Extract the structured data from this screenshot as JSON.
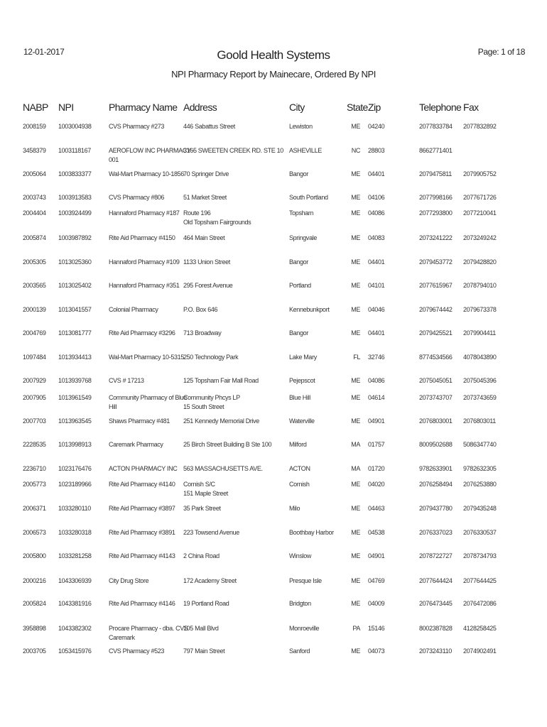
{
  "header": {
    "date": "12-01-2017",
    "title": "Goold Health Systems",
    "page": "Page: 1 of 18",
    "subtitle": "NPI Pharmacy Report by Mainecare, Ordered By NPI"
  },
  "columns": [
    "NABP",
    "NPI",
    "Pharmacy Name",
    "Address",
    "City",
    "State",
    "Zip",
    "Telephone",
    "Fax"
  ],
  "rows": [
    {
      "nabp": "2008159",
      "npi": "1003004938",
      "name": [
        "CVS Pharmacy #273"
      ],
      "address": [
        "446 Sabattus Street"
      ],
      "city": "Lewiston",
      "state": "ME",
      "zip": "04240",
      "telephone": "2077833784",
      "fax": "2077832892"
    },
    {
      "nabp": "3458379",
      "npi": "1003118167",
      "name": [
        "AEROFLOW INC PHARMACY -",
        "001"
      ],
      "address": [
        "3165 SWEETEN CREEK RD. STE 10"
      ],
      "city": "ASHEVILLE",
      "state": "NC",
      "zip": "28803",
      "telephone": "8662771401",
      "fax": ""
    },
    {
      "nabp": "2005064",
      "npi": "1003833377",
      "name": [
        "Wal-Mart Pharmacy 10-1856"
      ],
      "address": [
        "70 Springer Drive"
      ],
      "city": "Bangor",
      "state": "ME",
      "zip": "04401",
      "telephone": "2079475811",
      "fax": "2079905752"
    },
    {
      "nabp": "2003743",
      "npi": "1003913583",
      "name": [
        "CVS Pharmacy #806"
      ],
      "address": [
        "51 Market Street"
      ],
      "city": "South Portland",
      "state": "ME",
      "zip": "04106",
      "telephone": "2077998166",
      "fax": "2077671726"
    },
    {
      "nabp": "2004404",
      "npi": "1003924499",
      "name": [
        "Hannaford Pharmacy #187"
      ],
      "address": [
        "Route 196",
        "Old Topsham Fairgrounds"
      ],
      "city": "Topsham",
      "state": "ME",
      "zip": "04086",
      "telephone": "2077293800",
      "fax": "2077210041"
    },
    {
      "nabp": "2005874",
      "npi": "1003987892",
      "name": [
        "Rite Aid Pharmacy #4150"
      ],
      "address": [
        "464 Main Street"
      ],
      "city": "Springvale",
      "state": "ME",
      "zip": "04083",
      "telephone": "2073241222",
      "fax": "2073249242"
    },
    {
      "nabp": "2005305",
      "npi": "1013025360",
      "name": [
        "Hannaford Pharmacy #109"
      ],
      "address": [
        "1133 Union Street"
      ],
      "city": "Bangor",
      "state": "ME",
      "zip": "04401",
      "telephone": "2079453772",
      "fax": "2079428820"
    },
    {
      "nabp": "2003565",
      "npi": "1013025402",
      "name": [
        "Hannaford Pharmacy #351"
      ],
      "address": [
        "295 Forest Avenue"
      ],
      "city": "Portland",
      "state": "ME",
      "zip": "04101",
      "telephone": "2077615967",
      "fax": "2078794010"
    },
    {
      "nabp": "2000139",
      "npi": "1013041557",
      "name": [
        "Colonial Pharmacy"
      ],
      "address": [
        "P.O. Box 646"
      ],
      "city": "Kennebunkport",
      "state": "ME",
      "zip": "04046",
      "telephone": "2079674442",
      "fax": "2079673378"
    },
    {
      "nabp": "2004769",
      "npi": "1013081777",
      "name": [
        "Rite Aid Pharmacy #3296"
      ],
      "address": [
        "713 Broadway"
      ],
      "city": "Bangor",
      "state": "ME",
      "zip": "04401",
      "telephone": "2079425521",
      "fax": "2079904411"
    },
    {
      "nabp": "1097484",
      "npi": "1013934413",
      "name": [
        "Wal-Mart Pharmacy 10-5315"
      ],
      "address": [
        "250 Technology Park"
      ],
      "city": "Lake Mary",
      "state": "FL",
      "zip": "32746",
      "telephone": "8774534566",
      "fax": "4078043890"
    },
    {
      "nabp": "2007929",
      "npi": "1013939768",
      "name": [
        "CVS # 17213"
      ],
      "address": [
        "125 Topsham Fair Mall Road"
      ],
      "city": "Pejepscot",
      "state": "ME",
      "zip": "04086",
      "telephone": "2075045051",
      "fax": "2075045396"
    },
    {
      "nabp": "2007905",
      "npi": "1013961549",
      "name": [
        "Community Pharmacy of Blue",
        "Hill"
      ],
      "address": [
        "Community Phcys LP",
        "15 South Street"
      ],
      "city": "Blue Hill",
      "state": "ME",
      "zip": "04614",
      "telephone": "2073743707",
      "fax": "2073743659"
    },
    {
      "nabp": "2007703",
      "npi": "1013963545",
      "name": [
        "Shaws Pharmacy #481"
      ],
      "address": [
        "251 Kennedy Memorial Drive"
      ],
      "city": "Waterville",
      "state": "ME",
      "zip": "04901",
      "telephone": "2076803001",
      "fax": "2076803011"
    },
    {
      "nabp": "2228535",
      "npi": "1013998913",
      "name": [
        "Caremark Pharmacy"
      ],
      "address": [
        "25 Birch Street Building B Ste 100"
      ],
      "city": "Milford",
      "state": "MA",
      "zip": "01757",
      "telephone": "8009502688",
      "fax": "5086347740"
    },
    {
      "nabp": "2236710",
      "npi": "1023176476",
      "name": [
        "ACTON PHARMACY INC"
      ],
      "address": [
        "563 MASSACHUSETTS AVE."
      ],
      "city": "ACTON",
      "state": "MA",
      "zip": "01720",
      "telephone": "9782633901",
      "fax": "9782632305"
    },
    {
      "nabp": "2005773",
      "npi": "1023189966",
      "name": [
        "Rite Aid Pharmacy #4140"
      ],
      "address": [
        "Cornish S/C",
        "151 Maple Street"
      ],
      "city": "Cornish",
      "state": "ME",
      "zip": "04020",
      "telephone": "2076258494",
      "fax": "2076253880"
    },
    {
      "nabp": "2006371",
      "npi": "1033280110",
      "name": [
        "Rite Aid Pharmacy #3897"
      ],
      "address": [
        "35 Park Street"
      ],
      "city": "Milo",
      "state": "ME",
      "zip": "04463",
      "telephone": "2079437780",
      "fax": "2079435248"
    },
    {
      "nabp": "2006573",
      "npi": "1033280318",
      "name": [
        "Rite Aid Pharmacy #3891"
      ],
      "address": [
        "223 Towsend Avenue"
      ],
      "city": "Boothbay Harbor",
      "state": "ME",
      "zip": "04538",
      "telephone": "2076337023",
      "fax": "2076330537"
    },
    {
      "nabp": "2005800",
      "npi": "1033281258",
      "name": [
        "Rite Aid Pharmacy #4143"
      ],
      "address": [
        "2 China Road"
      ],
      "city": "Winslow",
      "state": "ME",
      "zip": "04901",
      "telephone": "2078722727",
      "fax": "2078734793"
    },
    {
      "nabp": "2000216",
      "npi": "1043306939",
      "name": [
        "City Drug Store"
      ],
      "address": [
        "172 Academy Street"
      ],
      "city": "Presque Isle",
      "state": "ME",
      "zip": "04769",
      "telephone": "2077644424",
      "fax": "2077644425"
    },
    {
      "nabp": "2005824",
      "npi": "1043381916",
      "name": [
        "Rite Aid Pharmacy #4146"
      ],
      "address": [
        "19 Portland Road"
      ],
      "city": "Bridgton",
      "state": "ME",
      "zip": "04009",
      "telephone": "2076473445",
      "fax": "2076472086"
    },
    {
      "nabp": "3958898",
      "npi": "1043382302",
      "name": [
        "Procare Pharmacy - dba. CVS",
        "Caremark"
      ],
      "address": [
        "105 Mall Blvd"
      ],
      "city": "Monroeville",
      "state": "PA",
      "zip": "15146",
      "telephone": "8002387828",
      "fax": "4128258425"
    },
    {
      "nabp": "2003705",
      "npi": "1053415976",
      "name": [
        "CVS Pharmacy #523"
      ],
      "address": [
        "797 Main Street"
      ],
      "city": "Sanford",
      "state": "ME",
      "zip": "04073",
      "telephone": "2073243110",
      "fax": "2074902491"
    }
  ]
}
